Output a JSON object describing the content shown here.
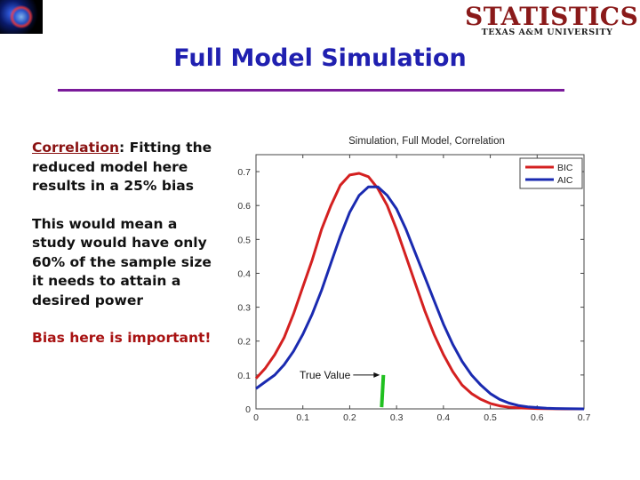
{
  "slide": {
    "title": "Full Model Simulation",
    "logo_main": "STATISTICS",
    "logo_sub": "TEXAS A&M UNIVERSITY"
  },
  "text": {
    "p1_term": "Correlation",
    "p1_rest": ": Fitting the reduced model here results in a 25% bias",
    "p2": "This would mean a study would have only 60% of the sample size it needs to attain a desired power",
    "p3": "Bias here is important!"
  },
  "colors": {
    "title": "#2020b0",
    "rule": "#7a1a9a",
    "bic": "#d42020",
    "aic": "#1a2ab0",
    "true_value": "#20c020"
  },
  "chart_data": {
    "type": "line",
    "title": "Simulation, Full Model, Correlation",
    "xlabel": "",
    "ylabel": "",
    "xlim": [
      0,
      0.7
    ],
    "ylim": [
      0,
      0.75
    ],
    "x_ticks": [
      "0",
      "0.1",
      "0.2",
      "0.3",
      "0.4",
      "0.5",
      "0.6",
      "0.7"
    ],
    "y_ticks": [
      "0",
      "0.1",
      "0.2",
      "0.3",
      "0.4",
      "0.5",
      "0.6",
      "0.7"
    ],
    "grid": false,
    "legend_position": "top-right",
    "series": [
      {
        "name": "BIC",
        "color": "#d42020",
        "x": [
          0,
          0.02,
          0.04,
          0.06,
          0.08,
          0.1,
          0.12,
          0.14,
          0.16,
          0.18,
          0.2,
          0.22,
          0.24,
          0.26,
          0.28,
          0.3,
          0.32,
          0.34,
          0.36,
          0.38,
          0.4,
          0.42,
          0.44,
          0.46,
          0.48,
          0.5,
          0.52,
          0.54,
          0.56,
          0.58,
          0.6,
          0.62,
          0.64,
          0.66,
          0.68,
          0.7
        ],
        "y": [
          0.09,
          0.12,
          0.16,
          0.21,
          0.28,
          0.36,
          0.44,
          0.53,
          0.6,
          0.66,
          0.69,
          0.695,
          0.685,
          0.65,
          0.6,
          0.53,
          0.45,
          0.37,
          0.29,
          0.22,
          0.16,
          0.11,
          0.07,
          0.045,
          0.028,
          0.016,
          0.009,
          0.005,
          0.003,
          0.002,
          0.001,
          0.0006,
          0.0003,
          0.0001,
          0.0,
          0.0
        ]
      },
      {
        "name": "AIC",
        "color": "#1a2ab0",
        "x": [
          0,
          0.02,
          0.04,
          0.06,
          0.08,
          0.1,
          0.12,
          0.14,
          0.16,
          0.18,
          0.2,
          0.22,
          0.24,
          0.26,
          0.28,
          0.3,
          0.32,
          0.34,
          0.36,
          0.38,
          0.4,
          0.42,
          0.44,
          0.46,
          0.48,
          0.5,
          0.52,
          0.54,
          0.56,
          0.58,
          0.6,
          0.62,
          0.64,
          0.66,
          0.68,
          0.7
        ],
        "y": [
          0.06,
          0.08,
          0.1,
          0.13,
          0.17,
          0.22,
          0.28,
          0.35,
          0.43,
          0.51,
          0.58,
          0.63,
          0.655,
          0.655,
          0.63,
          0.59,
          0.53,
          0.46,
          0.39,
          0.32,
          0.25,
          0.19,
          0.14,
          0.1,
          0.07,
          0.045,
          0.028,
          0.017,
          0.01,
          0.006,
          0.004,
          0.002,
          0.001,
          0.0005,
          0.0002,
          0.0001
        ]
      }
    ],
    "annotation": {
      "text": "True Value",
      "x": 0.27,
      "y": 0.1,
      "color": "#20c020"
    }
  }
}
